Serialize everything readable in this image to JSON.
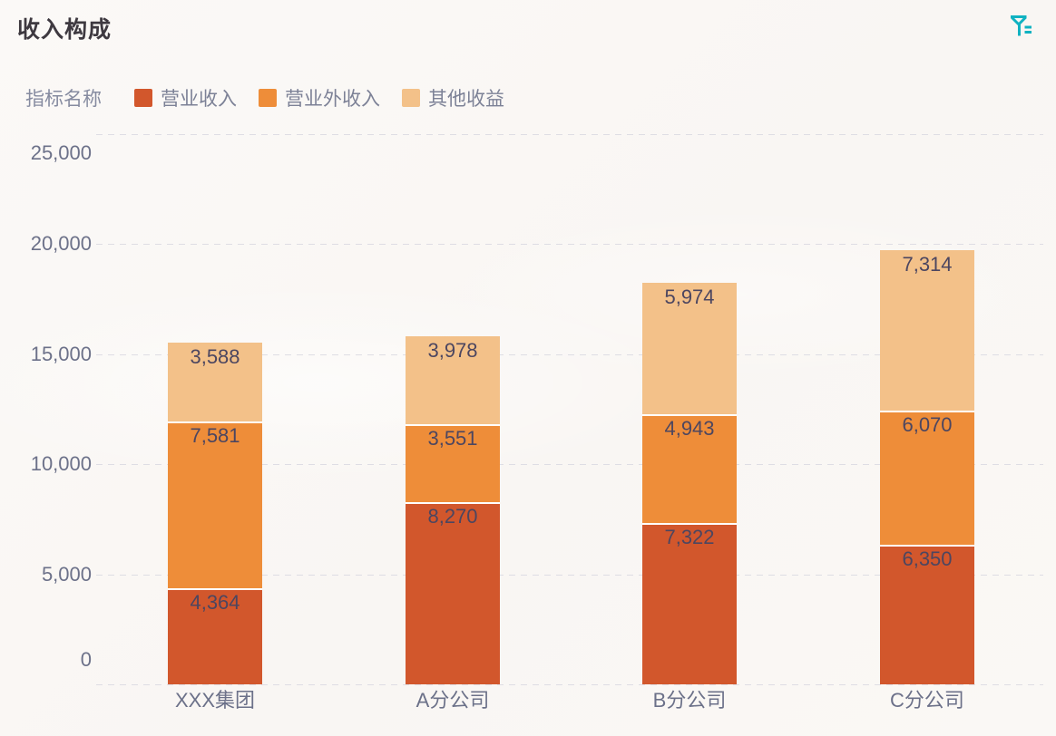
{
  "page": {
    "title": "收入构成"
  },
  "toolbar": {
    "filter_icon": "filter-funnel-icon",
    "icon_color": "#10b2c1"
  },
  "legend": {
    "axis_name": "指标名称",
    "items": [
      {
        "label": "营业收入",
        "color": "#d2572c"
      },
      {
        "label": "营业外收入",
        "color": "#ee8d39"
      },
      {
        "label": "其他收益",
        "color": "#f3c189"
      }
    ]
  },
  "chart_data": {
    "type": "bar",
    "stacked": true,
    "title": "收入构成",
    "categories": [
      "XXX集团",
      "A分公司",
      "B分公司",
      "C分公司"
    ],
    "series": [
      {
        "name": "营业收入",
        "color": "#d2572c",
        "values": [
          4364,
          8270,
          7322,
          6350
        ]
      },
      {
        "name": "营业外收入",
        "color": "#ee8d39",
        "values": [
          7581,
          3551,
          4943,
          6070
        ]
      },
      {
        "name": "其他收益",
        "color": "#f3c189",
        "values": [
          3588,
          3978,
          5974,
          7314
        ]
      }
    ],
    "ylim": [
      0,
      25000
    ],
    "yticks": [
      0,
      5000,
      10000,
      15000,
      20000,
      25000
    ],
    "ytick_labels": [
      "0",
      "5,000",
      "10,000",
      "15,000",
      "20,000",
      "25,000"
    ],
    "grid": "horizontal-dashed",
    "legend_position": "top-left",
    "value_labels": "inside-top"
  }
}
